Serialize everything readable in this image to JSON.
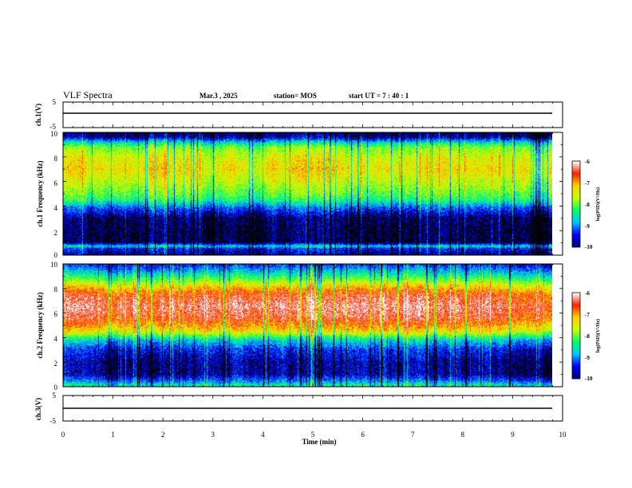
{
  "header": {
    "title": "VLF Spectra",
    "date": "Mar.3 , 2025",
    "station": "station= MOS",
    "start_ut": "start UT = 7 : 40 : 1"
  },
  "chart_data": [
    {
      "type": "line",
      "panel": "ch1-waveform",
      "ylabel": "ch.1(V)",
      "ylim": [
        -5,
        5
      ],
      "yticks": [
        "5",
        "-5"
      ],
      "xlim": [
        0,
        10
      ],
      "series": [
        {
          "x": [
            0,
            9.83
          ],
          "y": [
            0,
            0
          ]
        }
      ]
    },
    {
      "type": "heatmap",
      "panel": "ch1-spectrogram",
      "ylabel": "ch.1 Frequency (kHz)",
      "ylim": [
        0,
        10
      ],
      "yticks": [
        "0",
        "2",
        "4",
        "6",
        "8",
        "10"
      ],
      "xlim": [
        0,
        9.83
      ],
      "zlim": [
        -10,
        -6
      ],
      "zlabel": "log(PSD)(V²/Hz)",
      "colorbar_ticks": [
        "-6",
        "-7",
        "-8",
        "-9",
        "-10"
      ],
      "profile_khz": [
        0,
        0.5,
        0.7,
        1.0,
        2.0,
        3.0,
        3.8,
        4.5,
        5.0,
        6.0,
        7.0,
        8.0,
        8.8,
        9.2,
        9.6,
        10
      ],
      "profile_log_psd": [
        -9.7,
        -9.4,
        -8.6,
        -9.9,
        -9.9,
        -9.8,
        -9.2,
        -8.3,
        -8.0,
        -7.6,
        -7.3,
        -7.5,
        -7.9,
        -8.6,
        -9.6,
        -9.9
      ]
    },
    {
      "type": "heatmap",
      "panel": "ch2-spectrogram",
      "ylabel": "ch.2 Frequency (kHz)",
      "ylim": [
        0,
        10
      ],
      "yticks": [
        "0",
        "2",
        "4",
        "6",
        "8",
        "10"
      ],
      "xlim": [
        0,
        9.83
      ],
      "zlim": [
        -10,
        -6
      ],
      "zlabel": "log(PSD)(V²/Hz)",
      "colorbar_ticks": [
        "-6",
        "-7",
        "-8",
        "-9",
        "-10"
      ],
      "profile_khz": [
        0,
        0.5,
        1.0,
        2.0,
        3.0,
        3.8,
        4.5,
        5.5,
        6.5,
        7.5,
        8.2,
        8.8,
        9.4,
        10
      ],
      "profile_log_psd": [
        -8.4,
        -9.2,
        -9.7,
        -9.7,
        -9.4,
        -8.7,
        -7.4,
        -6.6,
        -6.3,
        -6.6,
        -7.3,
        -8.1,
        -8.8,
        -9.4
      ]
    },
    {
      "type": "line",
      "panel": "ch3-waveform",
      "ylabel": "ch.3(V)",
      "ylim": [
        -5,
        5
      ],
      "yticks": [
        "5",
        "-5"
      ],
      "xlim": [
        0,
        10
      ],
      "series": [
        {
          "x": [
            0,
            9.83
          ],
          "y": [
            0,
            0
          ]
        }
      ]
    }
  ],
  "xaxis": {
    "label": "Time (min)",
    "ticks": [
      "0",
      "1",
      "2",
      "3",
      "4",
      "5",
      "6",
      "7",
      "8",
      "9",
      "10"
    ],
    "xlim": [
      0,
      10
    ]
  },
  "colors": {
    "colormap": [
      "#000066",
      "#0000ff",
      "#00c8ff",
      "#00ff66",
      "#c8ff00",
      "#ffd200",
      "#ff1e00",
      "#ffffff"
    ],
    "black_floor": "#000000",
    "axis": "#000000"
  }
}
